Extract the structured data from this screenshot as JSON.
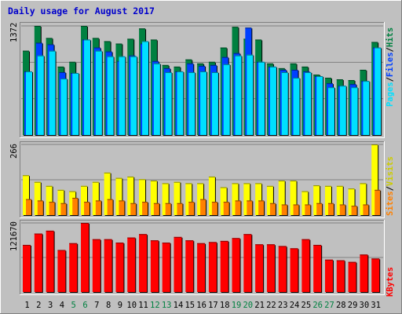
{
  "title": "Daily usage for August 2017",
  "colors": {
    "title": "#0000cc",
    "hits": "#008040",
    "files": "#0040ff",
    "pages": "#00e0ff",
    "visits": "#ffff00",
    "sites": "#ff8000",
    "kbytes": "#ff0000",
    "weekend_label": "#008040",
    "weekday_label": "#000000",
    "panel_bg": "#c0c0c0",
    "frame_bg": "#c0c0c0"
  },
  "legend_top": {
    "pages": "Pages",
    "files": "Files",
    "hits": "Hits",
    "sep": "/"
  },
  "legend_mid": {
    "sites": "Sites",
    "visits": "Visits",
    "sep": "/"
  },
  "legend_bottom": {
    "kbytes": "KBytes"
  },
  "chart_data": [
    {
      "type": "bar",
      "panel": "hits-files-pages",
      "categories": [
        "1",
        "2",
        "3",
        "4",
        "5",
        "6",
        "7",
        "8",
        "9",
        "10",
        "11",
        "12",
        "13",
        "14",
        "15",
        "16",
        "17",
        "18",
        "19",
        "20",
        "21",
        "22",
        "23",
        "24",
        "25",
        "26",
        "27",
        "28",
        "29",
        "30",
        "31"
      ],
      "ylim": [
        0,
        1372
      ],
      "ytick_label": "1372",
      "series": [
        {
          "name": "Hits",
          "values": [
            1060,
            1372,
            1220,
            860,
            920,
            1372,
            1220,
            1180,
            1150,
            1210,
            1340,
            1200,
            880,
            860,
            950,
            900,
            920,
            1100,
            1360,
            1210,
            1200,
            900,
            840,
            900,
            860,
            760,
            720,
            700,
            690,
            820,
            1170
          ]
        },
        {
          "name": "Files",
          "values": [
            800,
            1160,
            1140,
            790,
            780,
            1200,
            1100,
            1050,
            930,
            1000,
            1150,
            930,
            840,
            800,
            900,
            870,
            880,
            980,
            1030,
            1350,
            920,
            860,
            820,
            820,
            800,
            740,
            650,
            620,
            640,
            680,
            1100
          ]
        },
        {
          "name": "Pages",
          "values": [
            800,
            1000,
            1060,
            710,
            780,
            1200,
            1060,
            990,
            990,
            990,
            1180,
            900,
            790,
            800,
            790,
            800,
            790,
            890,
            1000,
            1010,
            920,
            860,
            790,
            720,
            790,
            740,
            600,
            620,
            600,
            680,
            1100
          ]
        }
      ]
    },
    {
      "type": "bar",
      "panel": "visits-sites",
      "categories": [
        "1",
        "2",
        "3",
        "4",
        "5",
        "6",
        "7",
        "8",
        "9",
        "10",
        "11",
        "12",
        "13",
        "14",
        "15",
        "16",
        "17",
        "18",
        "19",
        "20",
        "21",
        "22",
        "23",
        "24",
        "25",
        "26",
        "27",
        "28",
        "29",
        "30",
        "31"
      ],
      "ylim": [
        0,
        266
      ],
      "ytick_label": "266",
      "series": [
        {
          "name": "Visits",
          "values": [
            150,
            125,
            110,
            95,
            90,
            110,
            125,
            160,
            140,
            145,
            135,
            130,
            120,
            125,
            120,
            120,
            145,
            105,
            120,
            120,
            120,
            110,
            130,
            130,
            90,
            112,
            110,
            110,
            100,
            120,
            266
          ]
        },
        {
          "name": "Sites",
          "values": [
            60,
            55,
            50,
            45,
            65,
            50,
            55,
            60,
            55,
            45,
            50,
            45,
            45,
            45,
            50,
            60,
            50,
            50,
            55,
            55,
            55,
            45,
            40,
            40,
            40,
            45,
            45,
            40,
            35,
            40,
            95
          ]
        }
      ]
    },
    {
      "type": "bar",
      "panel": "kbytes",
      "categories": [
        "1",
        "2",
        "3",
        "4",
        "5",
        "6",
        "7",
        "8",
        "9",
        "10",
        "11",
        "12",
        "13",
        "14",
        "15",
        "16",
        "17",
        "18",
        "19",
        "20",
        "21",
        "22",
        "23",
        "24",
        "25",
        "26",
        "27",
        "28",
        "29",
        "30",
        "31"
      ],
      "ylim": [
        0,
        121670
      ],
      "ytick_label": "121670",
      "series": [
        {
          "name": "KBytes",
          "values": [
            83000,
            103000,
            108000,
            74000,
            86000,
            121670,
            93000,
            93000,
            87000,
            96000,
            102000,
            91000,
            87000,
            97000,
            91000,
            86000,
            88000,
            90000,
            95000,
            102000,
            84000,
            84000,
            81000,
            77000,
            93000,
            83000,
            57000,
            56000,
            53000,
            66000,
            59000
          ]
        }
      ]
    }
  ],
  "x_label_colors": [
    "wd",
    "wd",
    "wd",
    "wd",
    "we",
    "we",
    "wd",
    "wd",
    "wd",
    "wd",
    "wd",
    "we",
    "we",
    "wd",
    "wd",
    "wd",
    "wd",
    "wd",
    "we",
    "we",
    "wd",
    "wd",
    "wd",
    "wd",
    "wd",
    "we",
    "we",
    "wd",
    "wd",
    "wd",
    "wd"
  ]
}
